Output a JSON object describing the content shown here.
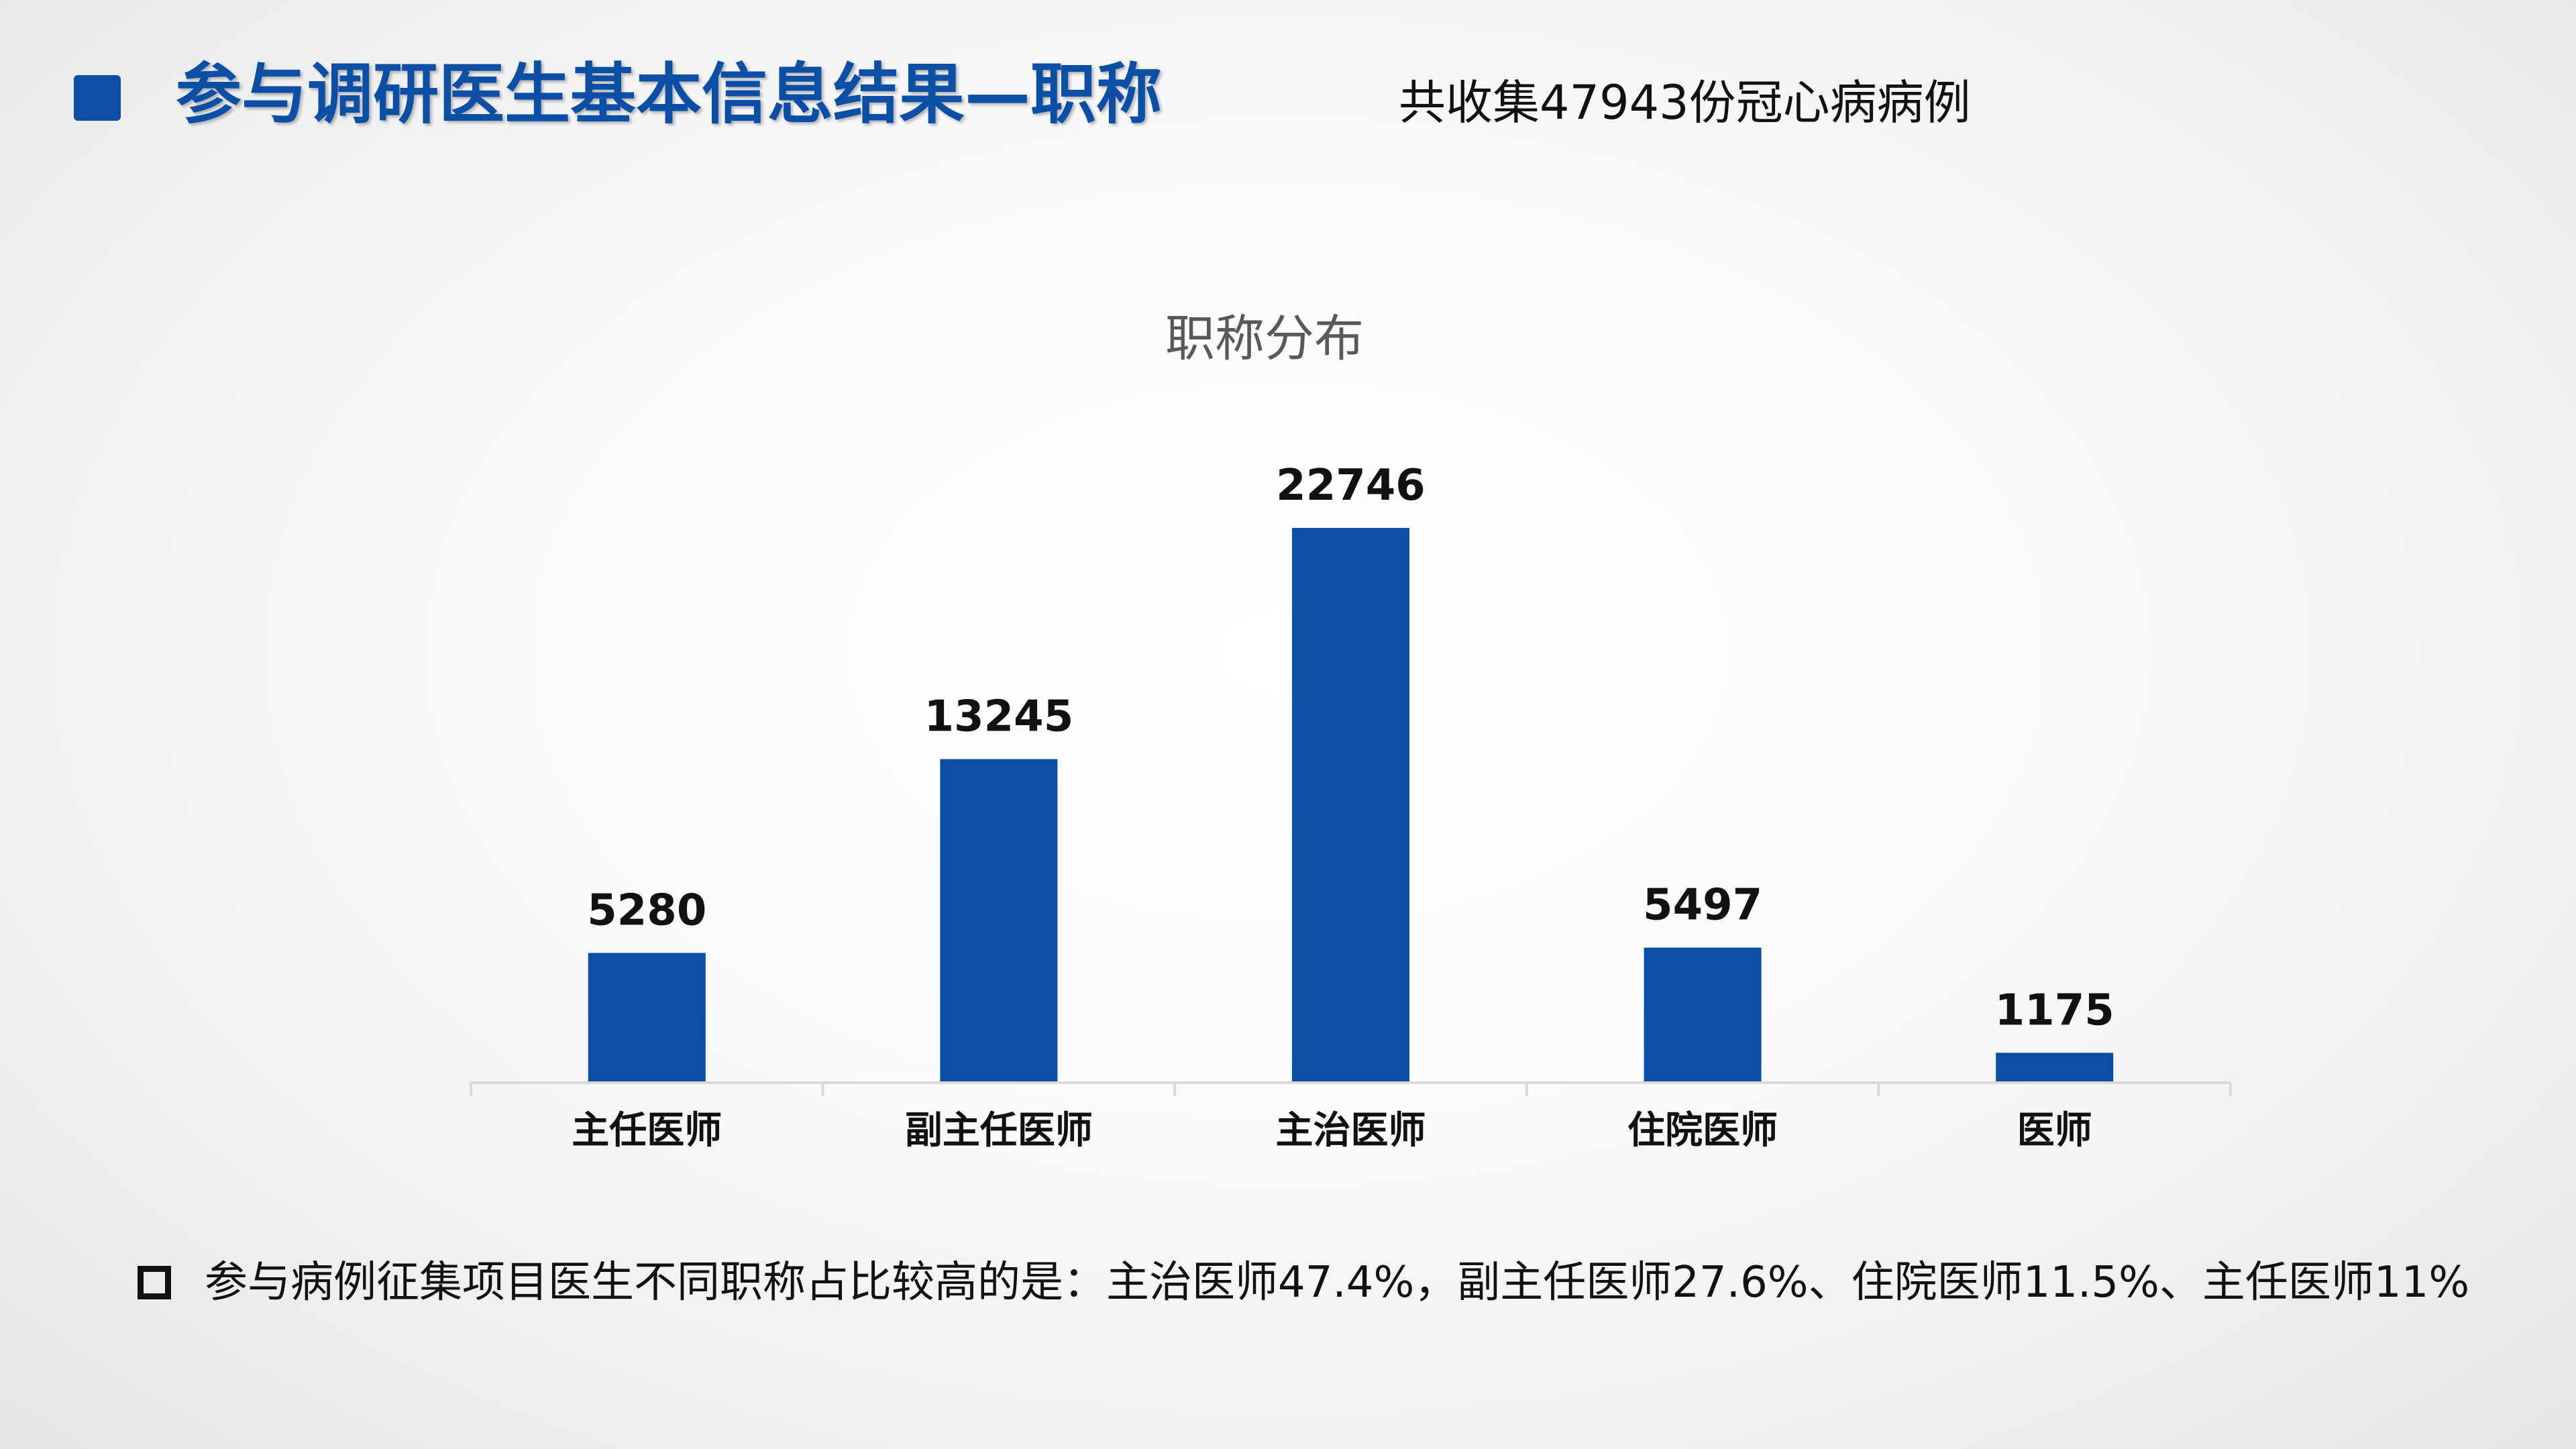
{
  "slide": {
    "title": "参与调研医生基本信息结果—职称",
    "case_count_text": "共收集47943份冠心病病例",
    "footnote": "参与病例征集项目医生不同职称占比较高的是：主治医师47.4%，副主任医师27.6%、住院医师11.5%、主任医师11%"
  },
  "colors": {
    "accent": "#0a4ea6",
    "bar": "#0a4ea6",
    "chart_title": "#595959",
    "text": "#111111",
    "axis": "#d9d9d9"
  },
  "chart_data": {
    "type": "bar",
    "title": "职称分布",
    "categories": [
      "主任医师",
      "副主任医师",
      "主治医师",
      "住院医师",
      "医师"
    ],
    "values": [
      5280,
      13245,
      22746,
      5497,
      1175
    ],
    "xlabel": "",
    "ylabel": "",
    "ylim": [
      0,
      25000
    ],
    "grid": false,
    "legend": "none",
    "data_labels": true
  }
}
